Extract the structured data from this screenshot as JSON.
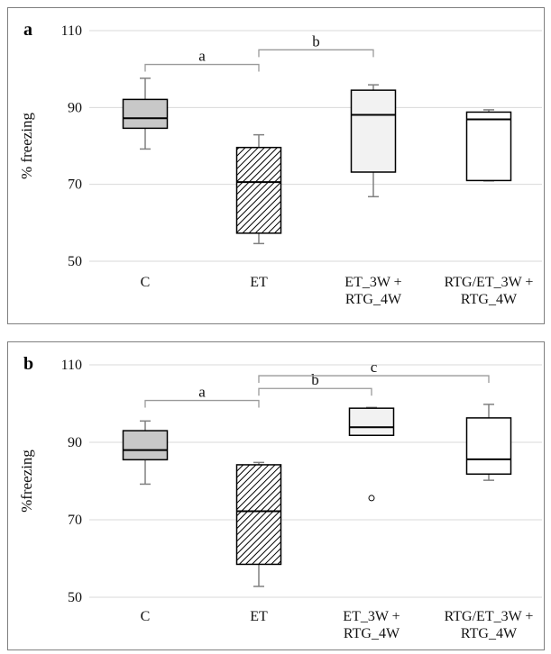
{
  "colors": {
    "grid": "#d9d9d9",
    "box_stroke": "#000000",
    "whisker": "#808080",
    "bracket": "#9a9a9a",
    "fill_C": "#c8c8c8",
    "fill_ET3": "#f2f2f2",
    "fill_RTG": "#ffffff"
  },
  "chart_data": [
    {
      "panel_label": "a",
      "type": "box",
      "ylabel": "% freezing",
      "ylim": [
        50,
        110
      ],
      "yticks": [
        "50",
        "70",
        "90",
        "110"
      ],
      "grid": true,
      "categories": [
        [
          "C"
        ],
        [
          "ET"
        ],
        [
          "ET_3W +",
          "RTG_4W"
        ],
        [
          "RTG/ET_3W +",
          "RTG_4W"
        ]
      ],
      "boxes": [
        {
          "min": 79.2,
          "q1": 84.6,
          "median": 87.2,
          "q3": 92.1,
          "max": 97.6,
          "fill": "gray",
          "outliers": []
        },
        {
          "min": 54.6,
          "q1": 57.3,
          "median": 70.6,
          "q3": 79.6,
          "max": 82.9,
          "fill": "hatched",
          "outliers": []
        },
        {
          "min": 66.8,
          "q1": 73.2,
          "median": 88.1,
          "q3": 94.5,
          "max": 95.9,
          "fill": "light",
          "outliers": []
        },
        {
          "min": 70.9,
          "q1": 71.0,
          "median": 86.9,
          "q3": 88.8,
          "max": 89.4,
          "fill": "white",
          "outliers": []
        }
      ],
      "brackets": [
        {
          "from": 0,
          "to": 1,
          "y": 101.2,
          "label": "a"
        },
        {
          "from": 1,
          "to": 2,
          "y": 105.0,
          "label": "b"
        }
      ]
    },
    {
      "panel_label": "b",
      "type": "box",
      "ylabel": "%freezing",
      "ylim": [
        50,
        110
      ],
      "yticks": [
        "50",
        "70",
        "90",
        "110"
      ],
      "grid": true,
      "categories": [
        [
          "C"
        ],
        [
          "ET"
        ],
        [
          "ET_3W +",
          "RTG_4W"
        ],
        [
          "RTG/ET_3W +",
          "RTG_4W"
        ]
      ],
      "boxes": [
        {
          "min": 79.2,
          "q1": 85.5,
          "median": 88.0,
          "q3": 93.0,
          "max": 95.5,
          "fill": "gray",
          "outliers": []
        },
        {
          "min": 52.8,
          "q1": 58.5,
          "median": 72.2,
          "q3": 84.2,
          "max": 84.8,
          "fill": "hatched",
          "outliers": []
        },
        {
          "min": 91.8,
          "q1": 91.8,
          "median": 93.9,
          "q3": 98.8,
          "max": 99.0,
          "fill": "light",
          "outliers": [
            75.6
          ]
        },
        {
          "min": 80.2,
          "q1": 81.8,
          "median": 85.6,
          "q3": 96.3,
          "max": 99.8,
          "fill": "white",
          "outliers": []
        }
      ],
      "brackets": [
        {
          "from": 0,
          "to": 1,
          "y": 100.8,
          "label": "a"
        },
        {
          "from": 1,
          "to": 2,
          "y": 103.9,
          "label": "b"
        },
        {
          "from": 1,
          "to": 3,
          "y": 107.2,
          "label": "c"
        }
      ]
    }
  ]
}
